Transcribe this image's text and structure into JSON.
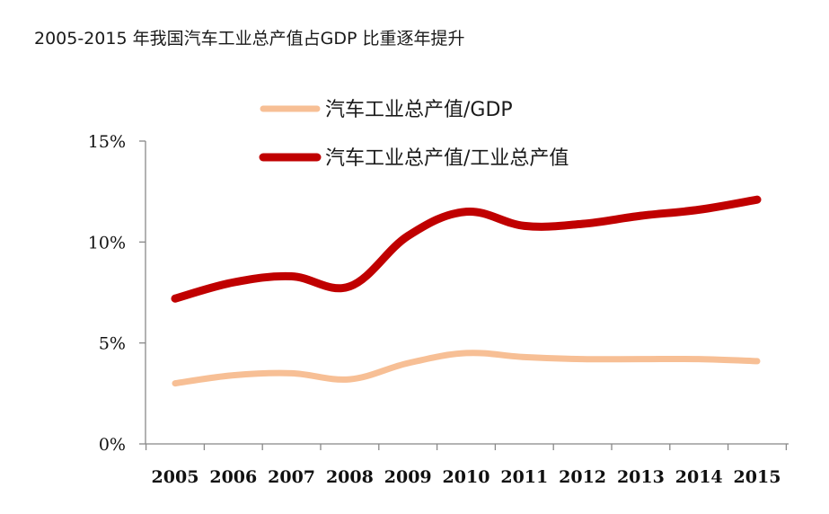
{
  "page": {
    "title": "2005-2015 年我国汽车工业总产值占GDP 比重逐年提升"
  },
  "chart_data": {
    "type": "line",
    "title": "2005-2015 年我国汽车工业总产值占GDP 比重逐年提升",
    "xlabel": "",
    "ylabel": "",
    "categories": [
      "2005",
      "2006",
      "2007",
      "2008",
      "2009",
      "2010",
      "2011",
      "2012",
      "2013",
      "2014",
      "2015"
    ],
    "ylim": [
      0,
      15
    ],
    "y_ticks": [
      "0%",
      "5%",
      "10%",
      "15%"
    ],
    "y_tick_values": [
      0,
      5,
      10,
      15
    ],
    "legend_position": "top-right",
    "series": [
      {
        "name": "汽车工业总产值/GDP",
        "color": "#f7bf95",
        "values": [
          3.0,
          3.4,
          3.5,
          3.2,
          4.0,
          4.5,
          4.3,
          4.2,
          4.2,
          4.2,
          4.1
        ]
      },
      {
        "name": "汽车工业总产值/工业总产值",
        "color": "#c00000",
        "values": [
          7.2,
          8.0,
          8.3,
          7.8,
          10.3,
          11.5,
          10.8,
          10.9,
          11.3,
          11.6,
          12.1
        ]
      }
    ]
  }
}
